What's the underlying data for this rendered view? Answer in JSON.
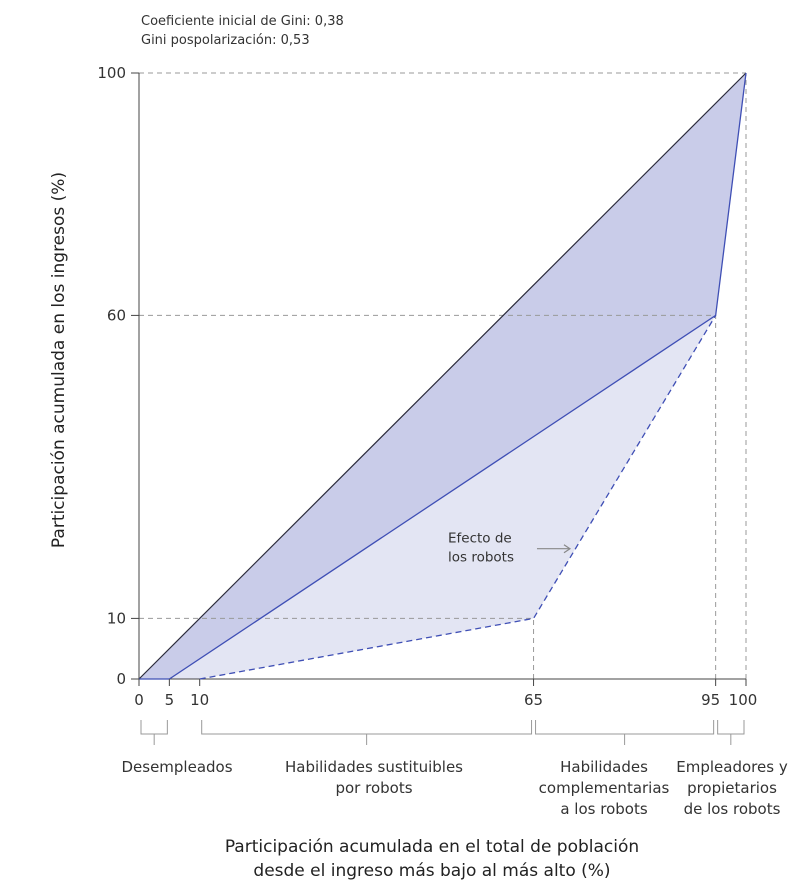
{
  "notes": {
    "gini_initial": "Coeficiente inicial de Gini: 0,38",
    "gini_after": "Gini pospolarización: 0,53"
  },
  "colors": {
    "upper_fill": "#c9cce9",
    "lower_fill": "#e3e5f3",
    "curve": "#3f4fb5",
    "equality": "#2b2b3b",
    "grid": "#999999",
    "axis": "#444444"
  },
  "chart_data": {
    "type": "area",
    "xlabel": [
      "Participación acumulada en el total de población",
      "desde el ingreso más bajo al más alto (%)"
    ],
    "ylabel": "Participación acumulada en los ingresos (%)",
    "xlim": [
      0,
      100
    ],
    "ylim": [
      0,
      100
    ],
    "x_ticks": [
      0,
      5,
      10,
      65,
      95,
      100
    ],
    "y_ticks": [
      0,
      10,
      60,
      100
    ],
    "series": [
      {
        "x": [
          0,
          100
        ],
        "y": [
          0,
          100
        ]
      },
      {
        "x": [
          0,
          5,
          95,
          100
        ],
        "y": [
          0,
          0,
          60,
          100
        ]
      },
      {
        "x": [
          10,
          65,
          95
        ],
        "y": [
          0,
          10,
          60
        ]
      }
    ],
    "reference_lines": [
      {
        "x": [
          0,
          100
        ],
        "y": [
          100,
          100
        ]
      },
      {
        "x": [
          0,
          95
        ],
        "y": [
          60,
          60
        ]
      },
      {
        "x": [
          0,
          65
        ],
        "y": [
          10,
          10
        ]
      },
      {
        "x": [
          65,
          65
        ],
        "y": [
          0,
          10
        ]
      },
      {
        "x": [
          95,
          95
        ],
        "y": [
          0,
          60
        ]
      },
      {
        "x": [
          100,
          100
        ],
        "y": [
          0,
          100
        ]
      }
    ],
    "annotation": {
      "lines": [
        "Efecto de",
        "los robots"
      ],
      "x": 57,
      "y": 21.5,
      "arrow_to": [
        71,
        21.5
      ]
    },
    "groups": [
      {
        "label": [
          "Desempleados"
        ],
        "x_from": 0,
        "x_to": 5
      },
      {
        "label": [
          "Habilidades sustituibles",
          "por robots"
        ],
        "x_from": 10,
        "x_to": 65
      },
      {
        "label": [
          "Habilidades",
          "complementarias",
          "a los robots"
        ],
        "x_from": 65,
        "x_to": 95
      },
      {
        "label": [
          "Empleadores y",
          "propietarios",
          "de los robots"
        ],
        "x_from": 95,
        "x_to": 100
      }
    ]
  }
}
